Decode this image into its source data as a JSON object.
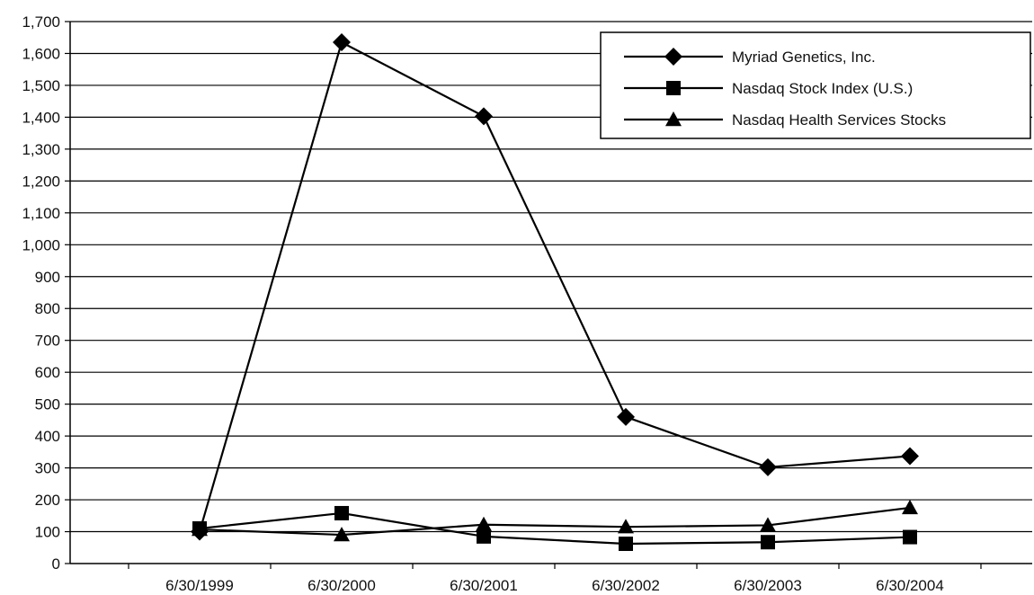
{
  "chart_data": {
    "type": "line",
    "title": "",
    "xlabel": "",
    "ylabel": "",
    "x": [
      "6/30/1999",
      "6/30/2000",
      "6/30/2001",
      "6/30/2002",
      "6/30/2003",
      "6/30/2004"
    ],
    "ylim": [
      0,
      1700
    ],
    "yticks": [
      0,
      100,
      200,
      300,
      400,
      500,
      600,
      700,
      800,
      900,
      1000,
      1100,
      1200,
      1300,
      1400,
      1500,
      1600,
      1700
    ],
    "ytick_labels": [
      "0",
      "100",
      "200",
      "300",
      "400",
      "500",
      "600",
      "700",
      "800",
      "900",
      "1,000",
      "1,100",
      "1,200",
      "1,300",
      "1,400",
      "1,500",
      "1,600",
      "1,700"
    ],
    "grid": true,
    "legend_position": "top-right",
    "series": [
      {
        "name": "Myriad Genetics, Inc.",
        "marker": "diamond",
        "values": [
          100,
          1635,
          1403,
          460,
          302,
          337
        ]
      },
      {
        "name": "Nasdaq Stock Index (U.S.)",
        "marker": "square",
        "values": [
          110,
          158,
          85,
          62,
          67,
          83
        ]
      },
      {
        "name": "Nasdaq Health Services Stocks",
        "marker": "triangle",
        "values": [
          107,
          90,
          122,
          115,
          120,
          175
        ]
      }
    ],
    "colors": {
      "line": "#000000",
      "grid": "#000000",
      "background": "#ffffff"
    }
  }
}
